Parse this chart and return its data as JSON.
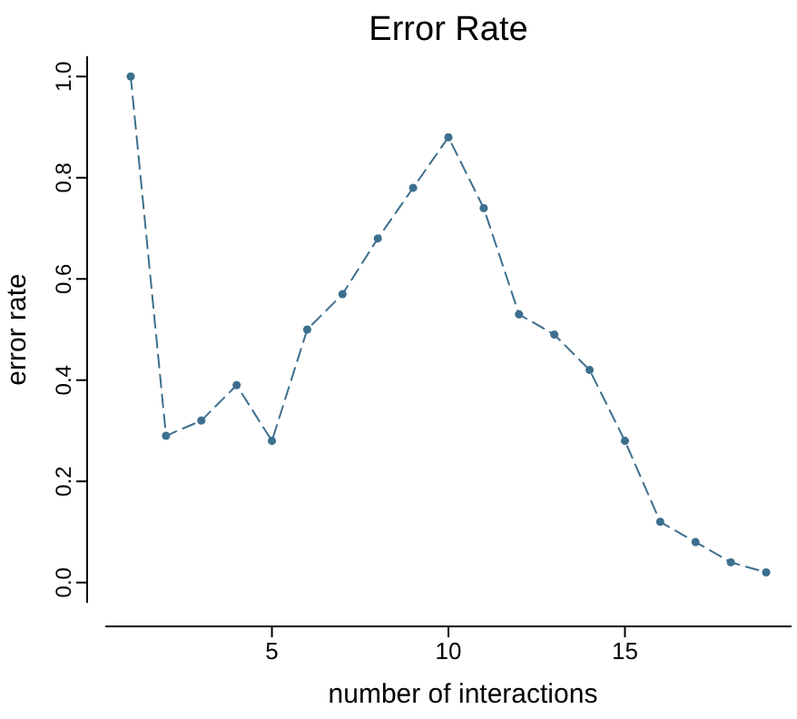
{
  "chart_data": {
    "type": "line",
    "title": "Error Rate",
    "xlabel": "number of interactions",
    "ylabel": "error rate",
    "x": [
      1,
      2,
      3,
      4,
      5,
      6,
      7,
      8,
      9,
      10,
      11,
      12,
      13,
      14,
      15,
      16,
      17,
      18,
      19
    ],
    "series": [
      {
        "color": "#3d6f8e",
        "values": [
          1.0,
          0.29,
          0.32,
          0.39,
          0.28,
          0.5,
          0.57,
          0.68,
          0.78,
          0.88,
          0.74,
          0.53,
          0.49,
          0.42,
          0.28,
          0.12,
          0.08,
          0.04,
          0.02
        ]
      }
    ],
    "xlim": [
      0.28,
      19.72
    ],
    "xticks": [
      5,
      10,
      15
    ],
    "ylim": [
      -0.04,
      1.04
    ],
    "yticks": [
      {
        "value": 0,
        "label": "0.0"
      },
      {
        "value": 0.2,
        "label": "0.2"
      },
      {
        "value": 0.4,
        "label": "0.4"
      },
      {
        "value": 0.6,
        "label": "0.6"
      },
      {
        "value": 0.8,
        "label": "0.8"
      },
      {
        "value": 1,
        "label": "1.0"
      }
    ],
    "marker": "circle",
    "line_style": "dashed",
    "grid": false
  }
}
